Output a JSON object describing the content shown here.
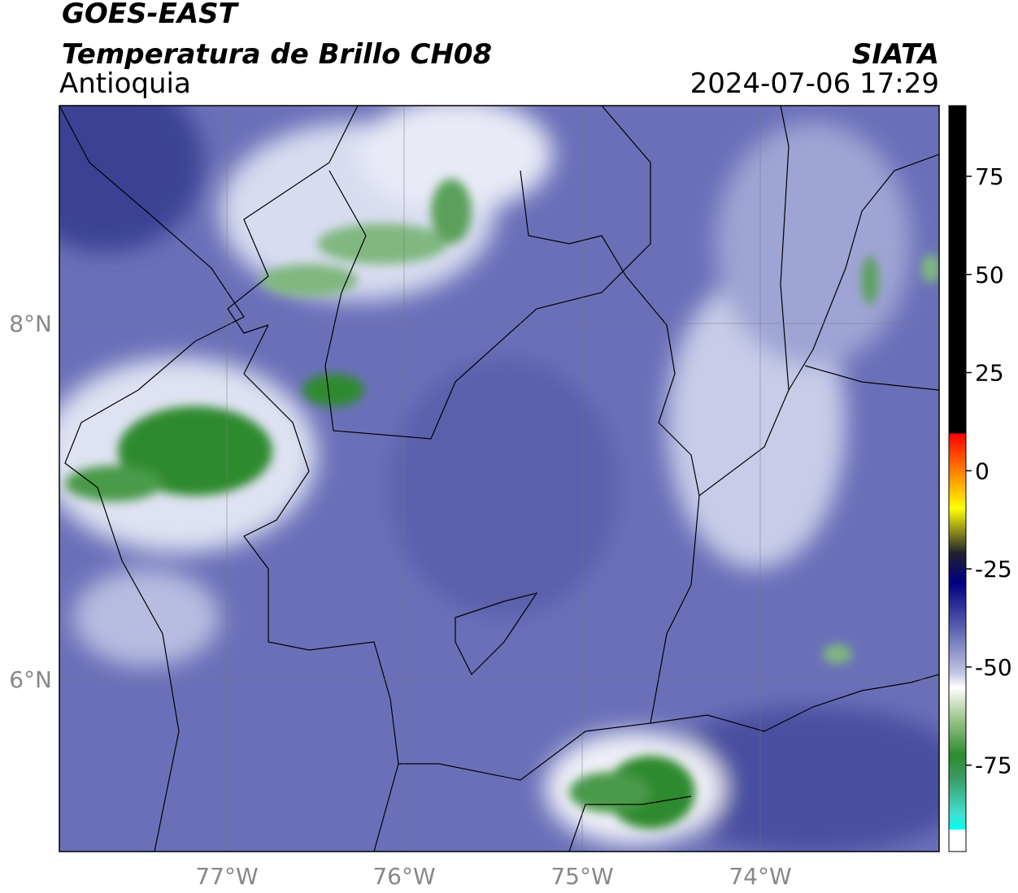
{
  "header": {
    "title": "GOES-EAST",
    "subtitle": "Temperatura de Brillo CH08",
    "region": "Antioquia",
    "source": "SIATA",
    "datetime": "2024-07-06 17:29"
  },
  "map": {
    "lat_labels": [
      "8°N",
      "6°N"
    ],
    "lon_labels": [
      "77°W",
      "76°W",
      "75°W",
      "74°W"
    ]
  },
  "colorbar": {
    "lim": [
      -97,
      93
    ],
    "ticks": [
      75,
      50,
      25,
      0,
      -25,
      -50,
      -75
    ]
  }
}
